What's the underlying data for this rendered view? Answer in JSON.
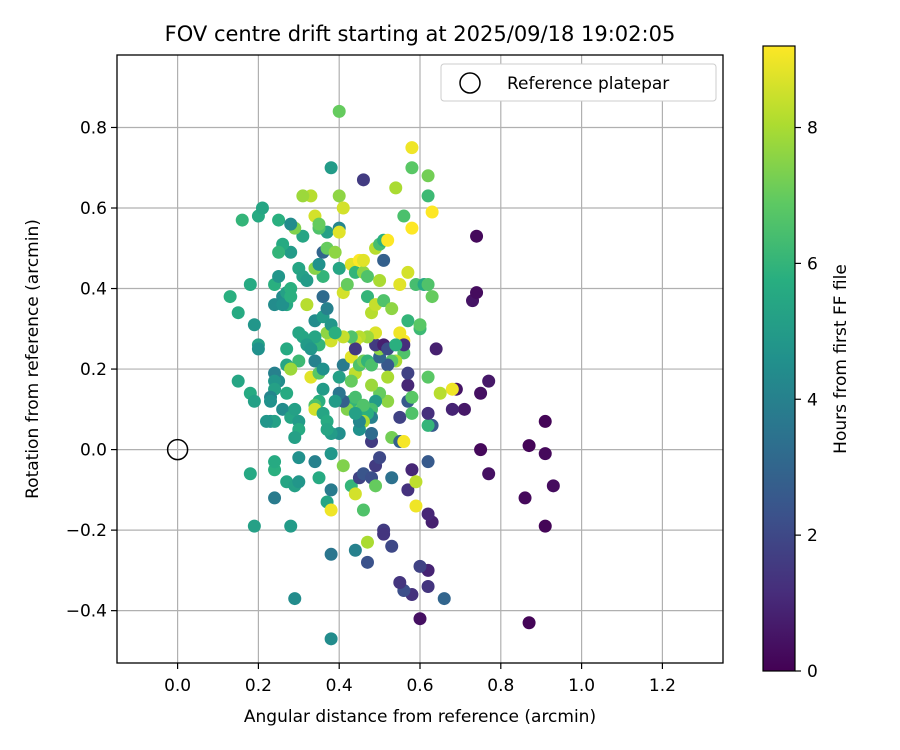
{
  "chart_data": {
    "type": "scatter",
    "title": "FOV centre drift starting at 2025/09/18 19:02:05",
    "xlabel": "Angular distance from reference (arcmin)",
    "ylabel": "Rotation from reference (arcmin)",
    "xlim": [
      -0.15,
      1.35
    ],
    "ylim": [
      -0.53,
      0.98
    ],
    "xticks": [
      "0.0",
      "0.2",
      "0.4",
      "0.6",
      "0.8",
      "1.0",
      "1.2"
    ],
    "yticks": [
      "−0.4",
      "−0.2",
      "0.0",
      "0.2",
      "0.4",
      "0.6",
      "0.8"
    ],
    "grid": true,
    "legend": {
      "label": "Reference platepar",
      "placement": "top-right"
    },
    "reference_point": [
      0.0,
      0.0
    ],
    "colorbar": {
      "label": "Hours from first FF file",
      "colormap": "viridis",
      "range": [
        0,
        9.2
      ],
      "ticks": [
        "0",
        "2",
        "4",
        "6",
        "8"
      ]
    },
    "points": [
      [
        0.87,
        -0.43,
        0.1
      ],
      [
        0.91,
        -0.19,
        0.1
      ],
      [
        0.86,
        -0.12,
        0.2
      ],
      [
        0.93,
        -0.09,
        0.3
      ],
      [
        0.91,
        -0.01,
        0.2
      ],
      [
        0.87,
        0.01,
        0.1
      ],
      [
        0.91,
        0.07,
        0.1
      ],
      [
        0.77,
        -0.06,
        0.4
      ],
      [
        0.75,
        0.0,
        0.2
      ],
      [
        0.77,
        0.17,
        0.6
      ],
      [
        0.75,
        0.14,
        0.4
      ],
      [
        0.73,
        0.37,
        0.5
      ],
      [
        0.74,
        0.39,
        0.3
      ],
      [
        0.74,
        0.53,
        0.2
      ],
      [
        0.71,
        0.1,
        0.6
      ],
      [
        0.69,
        0.15,
        0.5
      ],
      [
        0.68,
        0.1,
        0.9
      ],
      [
        0.68,
        0.15,
        9.0
      ],
      [
        0.65,
        0.14,
        8.2
      ],
      [
        0.64,
        0.25,
        0.8
      ],
      [
        0.63,
        0.06,
        2.6
      ],
      [
        0.62,
        0.06,
        6.0
      ],
      [
        0.63,
        -0.18,
        0.8
      ],
      [
        0.62,
        -0.16,
        1.0
      ],
      [
        0.62,
        -0.03,
        2.6
      ],
      [
        0.62,
        0.09,
        1.2
      ],
      [
        0.62,
        0.18,
        6.8
      ],
      [
        0.6,
        -0.42,
        0.4
      ],
      [
        0.62,
        -0.34,
        1.4
      ],
      [
        0.62,
        -0.3,
        0.9
      ],
      [
        0.6,
        -0.29,
        1.8
      ],
      [
        0.58,
        -0.36,
        1.3
      ],
      [
        0.56,
        -0.35,
        2.2
      ],
      [
        0.55,
        -0.33,
        1.4
      ],
      [
        0.66,
        -0.37,
        3.0
      ],
      [
        0.57,
        -0.1,
        1.3
      ],
      [
        0.58,
        -0.05,
        1.0
      ],
      [
        0.59,
        -0.08,
        8.3
      ],
      [
        0.59,
        -0.14,
        9.0
      ],
      [
        0.53,
        -0.24,
        2.0
      ],
      [
        0.51,
        -0.2,
        1.6
      ],
      [
        0.51,
        -0.21,
        1.4
      ],
      [
        0.47,
        -0.23,
        8.0
      ],
      [
        0.47,
        -0.28,
        2.3
      ],
      [
        0.44,
        -0.25,
        4.0
      ],
      [
        0.38,
        -0.26,
        3.6
      ],
      [
        0.38,
        -0.47,
        4.4
      ],
      [
        0.29,
        -0.37,
        4.4
      ],
      [
        0.28,
        -0.19,
        5.0
      ],
      [
        0.19,
        -0.19,
        5.2
      ],
      [
        0.18,
        -0.06,
        5.5
      ],
      [
        0.24,
        -0.05,
        5.8
      ],
      [
        0.24,
        -0.03,
        5.6
      ],
      [
        0.24,
        -0.12,
        3.8
      ],
      [
        0.27,
        -0.08,
        5.4
      ],
      [
        0.29,
        -0.09,
        5.2
      ],
      [
        0.3,
        -0.08,
        4.8
      ],
      [
        0.3,
        -0.02,
        4.6
      ],
      [
        0.34,
        -0.03,
        4.0
      ],
      [
        0.35,
        -0.07,
        5.6
      ],
      [
        0.37,
        -0.13,
        5.4
      ],
      [
        0.38,
        -0.15,
        9.0
      ],
      [
        0.38,
        -0.1,
        3.8
      ],
      [
        0.38,
        -0.01,
        4.8
      ],
      [
        0.4,
        0.04,
        4.5
      ],
      [
        0.41,
        -0.04,
        7.4
      ],
      [
        0.43,
        -0.09,
        6.0
      ],
      [
        0.44,
        -0.11,
        8.6
      ],
      [
        0.45,
        -0.07,
        1.8
      ],
      [
        0.46,
        -0.06,
        2.4
      ],
      [
        0.46,
        -0.15,
        6.6
      ],
      [
        0.48,
        -0.07,
        2.2
      ],
      [
        0.49,
        -0.09,
        7.0
      ],
      [
        0.49,
        -0.04,
        1.6
      ],
      [
        0.5,
        -0.02,
        2.0
      ],
      [
        0.53,
        -0.07,
        3.4
      ],
      [
        0.48,
        0.02,
        1.6
      ],
      [
        0.48,
        0.04,
        3.2
      ],
      [
        0.53,
        0.03,
        7.2
      ],
      [
        0.55,
        0.02,
        2.8
      ],
      [
        0.56,
        0.02,
        9.1
      ],
      [
        0.55,
        0.08,
        1.8
      ],
      [
        0.57,
        0.12,
        2.6
      ],
      [
        0.58,
        0.09,
        6.6
      ],
      [
        0.58,
        0.13,
        6.8
      ],
      [
        0.57,
        0.16,
        1.0
      ],
      [
        0.57,
        0.19,
        1.8
      ],
      [
        0.56,
        0.24,
        6.6
      ],
      [
        0.56,
        0.27,
        9.2
      ],
      [
        0.57,
        0.32,
        6.0
      ],
      [
        0.6,
        0.3,
        6.2
      ],
      [
        0.55,
        0.29,
        9.0
      ],
      [
        0.56,
        0.26,
        1.2
      ],
      [
        0.54,
        0.22,
        8.0
      ],
      [
        0.53,
        0.22,
        6.8
      ],
      [
        0.52,
        0.21,
        2.5
      ],
      [
        0.52,
        0.18,
        8.0
      ],
      [
        0.52,
        0.12,
        7.6
      ],
      [
        0.5,
        0.14,
        7.0
      ],
      [
        0.49,
        0.12,
        5.0
      ],
      [
        0.48,
        0.1,
        6.4
      ],
      [
        0.48,
        0.08,
        4.0
      ],
      [
        0.47,
        0.09,
        5.8
      ],
      [
        0.46,
        0.07,
        8.0
      ],
      [
        0.45,
        0.05,
        4.6
      ],
      [
        0.45,
        0.07,
        4.2
      ],
      [
        0.44,
        0.1,
        7.0
      ],
      [
        0.43,
        0.12,
        6.0
      ],
      [
        0.42,
        0.1,
        7.4
      ],
      [
        0.41,
        0.12,
        2.8
      ],
      [
        0.4,
        0.14,
        3.6
      ],
      [
        0.4,
        0.18,
        5.2
      ],
      [
        0.41,
        0.21,
        3.8
      ],
      [
        0.43,
        0.23,
        8.8
      ],
      [
        0.44,
        0.19,
        8.3
      ],
      [
        0.45,
        0.21,
        6.6
      ],
      [
        0.46,
        0.22,
        7.2
      ],
      [
        0.47,
        0.22,
        6.0
      ],
      [
        0.48,
        0.21,
        6.5
      ],
      [
        0.48,
        0.16,
        7.8
      ],
      [
        0.5,
        0.23,
        3.0
      ],
      [
        0.5,
        0.25,
        7.6
      ],
      [
        0.49,
        0.26,
        1.6
      ],
      [
        0.51,
        0.26,
        0.8
      ],
      [
        0.52,
        0.25,
        2.1
      ],
      [
        0.54,
        0.26,
        5.8
      ],
      [
        0.49,
        0.29,
        8.7
      ],
      [
        0.47,
        0.28,
        7.8
      ],
      [
        0.45,
        0.28,
        8.2
      ],
      [
        0.44,
        0.27,
        8.5
      ],
      [
        0.44,
        0.25,
        1.5
      ],
      [
        0.43,
        0.28,
        6.6
      ],
      [
        0.41,
        0.28,
        8.4
      ],
      [
        0.38,
        0.27,
        8.6
      ],
      [
        0.37,
        0.29,
        7.6
      ],
      [
        0.35,
        0.26,
        6.0
      ],
      [
        0.34,
        0.28,
        5.4
      ],
      [
        0.34,
        0.32,
        4.4
      ],
      [
        0.36,
        0.33,
        5.0
      ],
      [
        0.37,
        0.35,
        4.0
      ],
      [
        0.38,
        0.31,
        4.8
      ],
      [
        0.39,
        0.29,
        5.8
      ],
      [
        0.36,
        0.38,
        3.2
      ],
      [
        0.36,
        0.43,
        6.0
      ],
      [
        0.34,
        0.45,
        7.5
      ],
      [
        0.35,
        0.46,
        4.6
      ],
      [
        0.36,
        0.49,
        3.0
      ],
      [
        0.37,
        0.5,
        7.0
      ],
      [
        0.37,
        0.54,
        5.2
      ],
      [
        0.35,
        0.55,
        6.6
      ],
      [
        0.34,
        0.58,
        8.6
      ],
      [
        0.33,
        0.63,
        8.2
      ],
      [
        0.38,
        0.7,
        5.0
      ],
      [
        0.4,
        0.84,
        7.0
      ],
      [
        0.4,
        0.63,
        7.6
      ],
      [
        0.41,
        0.6,
        8.6
      ],
      [
        0.4,
        0.55,
        4.2
      ],
      [
        0.4,
        0.54,
        8.8
      ],
      [
        0.4,
        0.45,
        5.4
      ],
      [
        0.41,
        0.39,
        8.6
      ],
      [
        0.42,
        0.41,
        7.0
      ],
      [
        0.43,
        0.46,
        8.8
      ],
      [
        0.44,
        0.44,
        6.0
      ],
      [
        0.45,
        0.47,
        9.2
      ],
      [
        0.46,
        0.44,
        7.6
      ],
      [
        0.46,
        0.47,
        8.8
      ],
      [
        0.46,
        0.67,
        1.6
      ],
      [
        0.47,
        0.43,
        6.6
      ],
      [
        0.47,
        0.38,
        6.0
      ],
      [
        0.48,
        0.34,
        8.2
      ],
      [
        0.49,
        0.36,
        8.4
      ],
      [
        0.49,
        0.5,
        8.2
      ],
      [
        0.5,
        0.42,
        8.0
      ],
      [
        0.5,
        0.51,
        6.4
      ],
      [
        0.51,
        0.52,
        5.8
      ],
      [
        0.51,
        0.47,
        2.8
      ],
      [
        0.51,
        0.37,
        6.6
      ],
      [
        0.52,
        0.52,
        9.2
      ],
      [
        0.53,
        0.35,
        7.6
      ],
      [
        0.54,
        0.65,
        8.0
      ],
      [
        0.55,
        0.41,
        8.8
      ],
      [
        0.56,
        0.58,
        6.5
      ],
      [
        0.57,
        0.44,
        8.6
      ],
      [
        0.58,
        0.55,
        9.2
      ],
      [
        0.58,
        0.75,
        9.0
      ],
      [
        0.58,
        0.7,
        6.8
      ],
      [
        0.59,
        0.41,
        6.4
      ],
      [
        0.61,
        0.41,
        5.6
      ],
      [
        0.62,
        0.41,
        6.6
      ],
      [
        0.62,
        0.63,
        6.2
      ],
      [
        0.62,
        0.68,
        7.2
      ],
      [
        0.63,
        0.59,
        9.2
      ],
      [
        0.63,
        0.38,
        7.0
      ],
      [
        0.6,
        0.31,
        6.8
      ],
      [
        0.39,
        0.49,
        7.6
      ],
      [
        0.31,
        0.63,
        7.8
      ],
      [
        0.31,
        0.53,
        5.4
      ],
      [
        0.29,
        0.55,
        7.4
      ],
      [
        0.28,
        0.49,
        5.0
      ],
      [
        0.26,
        0.51,
        5.6
      ],
      [
        0.25,
        0.49,
        6.0
      ],
      [
        0.25,
        0.57,
        5.8
      ],
      [
        0.2,
        0.58,
        5.6
      ],
      [
        0.21,
        0.6,
        5.4
      ],
      [
        0.16,
        0.57,
        6.0
      ],
      [
        0.24,
        0.41,
        5.8
      ],
      [
        0.24,
        0.36,
        4.4
      ],
      [
        0.26,
        0.38,
        4.4
      ],
      [
        0.27,
        0.39,
        5.2
      ],
      [
        0.28,
        0.4,
        5.8
      ],
      [
        0.27,
        0.36,
        5.6
      ],
      [
        0.26,
        0.36,
        4.6
      ],
      [
        0.25,
        0.43,
        4.8
      ],
      [
        0.3,
        0.45,
        5.4
      ],
      [
        0.31,
        0.43,
        5.2
      ],
      [
        0.32,
        0.42,
        5.0
      ],
      [
        0.32,
        0.36,
        8.2
      ],
      [
        0.3,
        0.29,
        5.4
      ],
      [
        0.31,
        0.28,
        5.4
      ],
      [
        0.32,
        0.26,
        5.0
      ],
      [
        0.33,
        0.25,
        4.8
      ],
      [
        0.3,
        0.22,
        6.2
      ],
      [
        0.27,
        0.25,
        5.6
      ],
      [
        0.27,
        0.21,
        5.4
      ],
      [
        0.28,
        0.2,
        8.6
      ],
      [
        0.25,
        0.17,
        4.4
      ],
      [
        0.24,
        0.19,
        4.0
      ],
      [
        0.24,
        0.17,
        4.8
      ],
      [
        0.24,
        0.15,
        5.2
      ],
      [
        0.23,
        0.13,
        4.2
      ],
      [
        0.23,
        0.07,
        4.6
      ],
      [
        0.24,
        0.07,
        5.2
      ],
      [
        0.26,
        0.1,
        4.4
      ],
      [
        0.28,
        0.08,
        5.4
      ],
      [
        0.27,
        0.14,
        5.6
      ],
      [
        0.29,
        0.1,
        5.2
      ],
      [
        0.3,
        0.07,
        5.0
      ],
      [
        0.3,
        0.05,
        5.6
      ],
      [
        0.29,
        0.03,
        5.2
      ],
      [
        0.33,
        0.18,
        8.8
      ],
      [
        0.34,
        0.22,
        4.0
      ],
      [
        0.35,
        0.19,
        6.8
      ],
      [
        0.36,
        0.2,
        4.6
      ],
      [
        0.36,
        0.15,
        5.0
      ],
      [
        0.35,
        0.12,
        5.8
      ],
      [
        0.34,
        0.11,
        6.6
      ],
      [
        0.34,
        0.1,
        8.6
      ],
      [
        0.36,
        0.09,
        5.4
      ],
      [
        0.37,
        0.07,
        5.6
      ],
      [
        0.38,
        0.04,
        5.0
      ],
      [
        0.37,
        0.05,
        5.4
      ],
      [
        0.39,
        0.12,
        5.0
      ],
      [
        0.2,
        0.26,
        5.2
      ],
      [
        0.2,
        0.25,
        4.6
      ],
      [
        0.19,
        0.31,
        4.8
      ],
      [
        0.18,
        0.41,
        5.6
      ],
      [
        0.15,
        0.34,
        5.6
      ],
      [
        0.13,
        0.38,
        5.8
      ],
      [
        0.15,
        0.17,
        5.4
      ],
      [
        0.18,
        0.14,
        5.6
      ],
      [
        0.19,
        0.12,
        5.2
      ],
      [
        0.22,
        0.07,
        4.8
      ],
      [
        0.23,
        0.12,
        4.6
      ],
      [
        0.35,
        0.56,
        7.0
      ],
      [
        0.28,
        0.56,
        4.4
      ],
      [
        0.28,
        0.38,
        5.8
      ],
      [
        0.28,
        0.2,
        7.8
      ],
      [
        0.43,
        0.17,
        7.0
      ],
      [
        0.44,
        0.13,
        6.4
      ],
      [
        0.46,
        0.11,
        6.6
      ],
      [
        0.44,
        0.09,
        5.2
      ]
    ]
  }
}
